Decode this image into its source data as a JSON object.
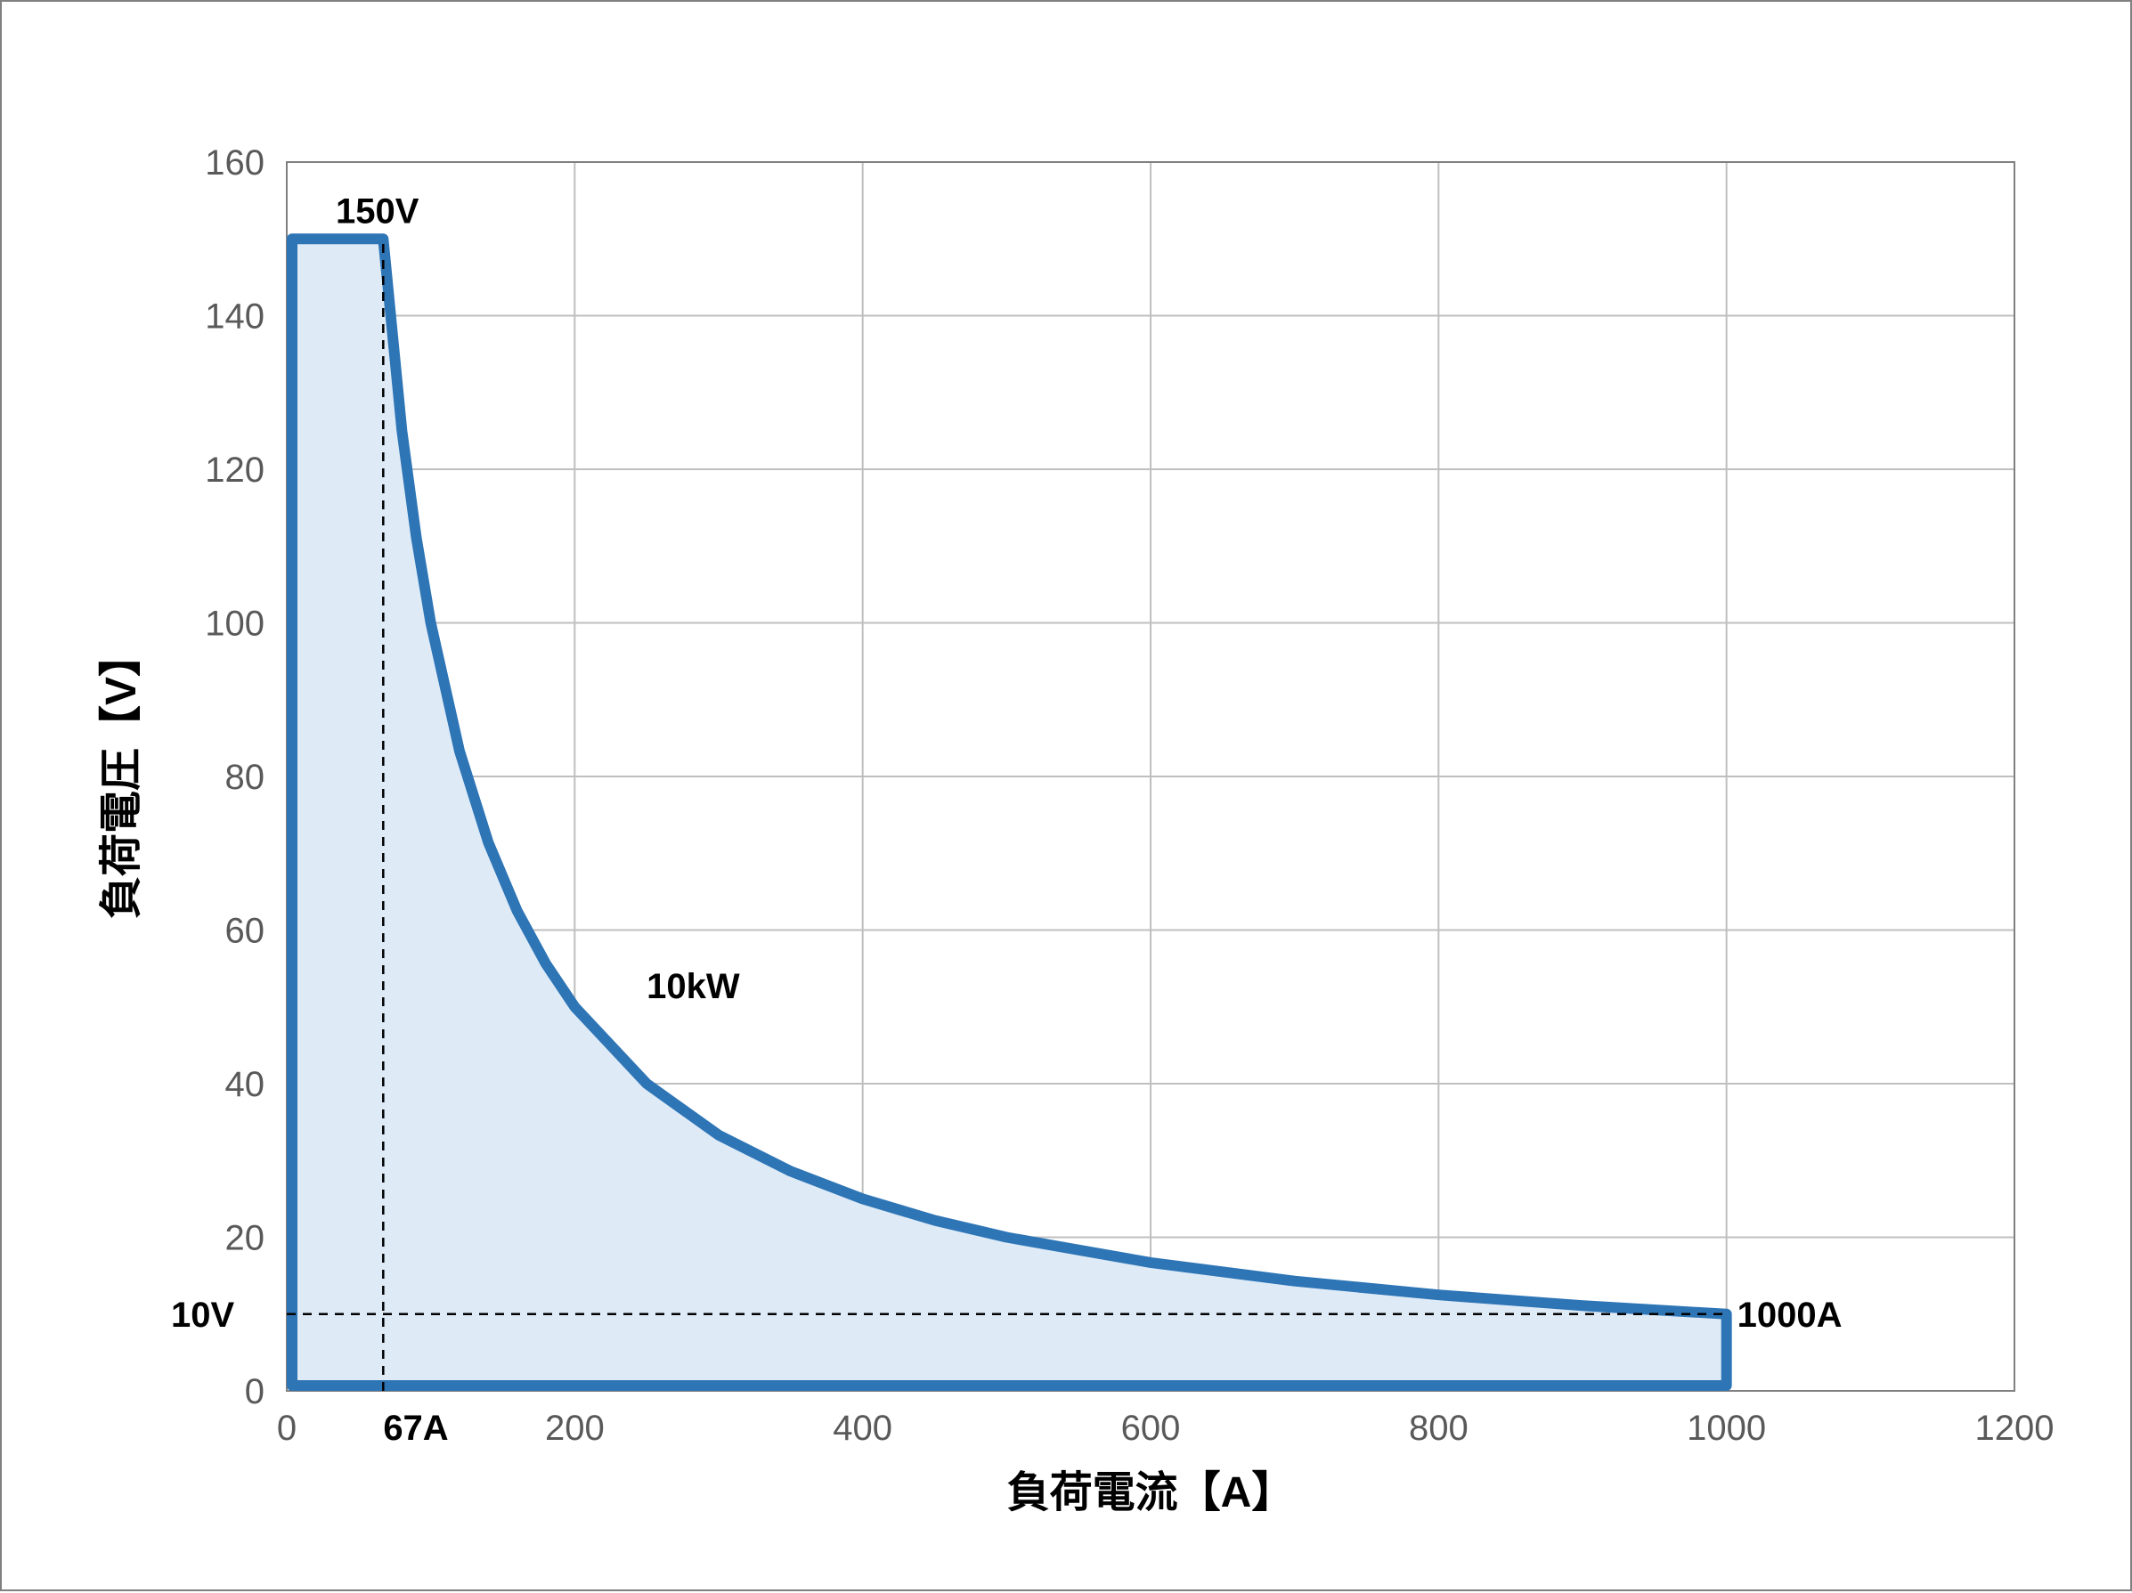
{
  "chart": {
    "type": "line-area",
    "background_color": "#ffffff",
    "plot_border_color": "#808080",
    "grid_color": "#bfbfbf",
    "tick_font_size": 40,
    "tick_font_color": "#595959",
    "axis_title_font_size": 48,
    "axis_title_font_weight": "bold",
    "x": {
      "label": "負荷電流【A】",
      "min": 0,
      "max": 1200,
      "tick_step": 200,
      "ticks": [
        0,
        200,
        400,
        600,
        800,
        1000,
        1200
      ]
    },
    "y": {
      "label": "負荷電圧【V】",
      "min": 0,
      "max": 160,
      "tick_step": 20,
      "ticks": [
        0,
        20,
        40,
        60,
        80,
        100,
        120,
        140,
        160
      ]
    },
    "series": {
      "line_color": "#2e75b6",
      "line_width": 12,
      "fill_color": "#deebf7",
      "fill_opacity": 1.0,
      "constant_power_kW": 10,
      "v_max": 150,
      "i_at_vmax": 67,
      "i_max": 1000,
      "v_at_imax": 10,
      "curve_points_x": [
        67,
        80,
        90,
        100,
        120,
        140,
        160,
        180,
        200,
        250,
        300,
        350,
        400,
        450,
        500,
        600,
        700,
        800,
        900,
        1000
      ],
      "curve_points_y": [
        150,
        125,
        111.1,
        100,
        83.3,
        71.4,
        62.5,
        55.6,
        50,
        40,
        33.3,
        28.6,
        25,
        22.2,
        20,
        16.7,
        14.3,
        12.5,
        11.1,
        10
      ]
    },
    "guides": {
      "dash": "10,8",
      "color": "#000000",
      "width": 2.5,
      "vertical_x": 67,
      "horizontal_y": 10
    },
    "annotations": {
      "font_size": 40,
      "font_weight": "bold",
      "vmax_label": "150V",
      "i_at_vmax_label": "67A",
      "power_label": "10kW",
      "v_at_imax_label": "10V",
      "imax_label": "1000A"
    }
  }
}
